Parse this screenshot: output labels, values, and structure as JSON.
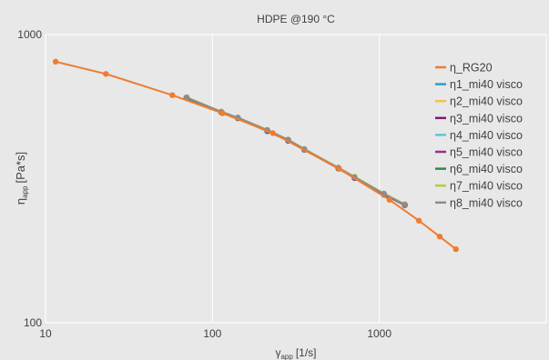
{
  "chart_data": {
    "type": "line",
    "title": "HDPE @190 °C",
    "xlabel": "γ",
    "xlabel_sub": "app",
    "xlabel_unit": "[1/s]",
    "ylabel": "η",
    "ylabel_sub": "app",
    "ylabel_unit": "[Pa*s]",
    "xscale": "log",
    "yscale": "log",
    "xlim": [
      10,
      10000
    ],
    "ylim": [
      100,
      1000
    ],
    "x_ticks": [
      10,
      100,
      1000
    ],
    "x_tick_labels": [
      "10",
      "100",
      "1000"
    ],
    "y_ticks": [
      100,
      1000
    ],
    "y_tick_labels": [
      "100",
      "1000"
    ],
    "grid": "x-major",
    "legend_position": "right",
    "series": [
      {
        "name": "η_RG20",
        "color": "#ed7d31",
        "x": [
          11.5,
          23,
          57.5,
          115,
          230,
          575,
          1150,
          1725,
          2300,
          2875
        ],
        "y": [
          805,
          730,
          616,
          533,
          455,
          342,
          267,
          226,
          199,
          180
        ]
      },
      {
        "name": "η1_mi40 visco",
        "color": "#2e9bd6",
        "x": [
          70,
          113,
          142,
          213,
          284,
          355,
          568,
          710,
          1065,
          1420
        ],
        "y": [
          602,
          537,
          512,
          462,
          428,
          398,
          343,
          318,
          278,
          256
        ]
      },
      {
        "name": "η2_mi40 visco",
        "color": "#f5c342",
        "x": [
          70,
          113,
          142,
          213,
          284,
          355,
          568,
          710,
          1065,
          1420
        ],
        "y": [
          604,
          538,
          513,
          464,
          430,
          399,
          344,
          319,
          279,
          257
        ]
      },
      {
        "name": "η3_mi40 visco",
        "color": "#7b1c6c",
        "x": [
          70,
          113,
          142,
          213,
          284,
          355,
          568,
          710,
          1065,
          1420
        ],
        "y": [
          603,
          537,
          513,
          463,
          429,
          399,
          343,
          318,
          279,
          256
        ]
      },
      {
        "name": "η4_mi40 visco",
        "color": "#5fc3dc",
        "x": [
          70,
          113,
          142,
          213,
          284,
          355,
          568,
          710,
          1065,
          1420
        ],
        "y": [
          605,
          539,
          514,
          465,
          431,
          400,
          344,
          320,
          280,
          257
        ]
      },
      {
        "name": "η5_mi40 visco",
        "color": "#9c2d8d",
        "x": [
          70,
          113,
          142,
          213,
          284,
          355,
          568,
          710,
          1065,
          1420
        ],
        "y": [
          603,
          538,
          513,
          464,
          430,
          399,
          343,
          319,
          279,
          256
        ]
      },
      {
        "name": "η6_mi40 visco",
        "color": "#2e8b3e",
        "x": [
          70,
          113,
          142,
          213,
          284,
          355,
          568,
          710,
          1065,
          1420
        ],
        "y": [
          604,
          538,
          514,
          465,
          431,
          400,
          344,
          320,
          280,
          257
        ]
      },
      {
        "name": "η7_mi40 visco",
        "color": "#b5cc3a",
        "x": [
          70,
          113,
          142,
          213,
          284,
          355,
          568,
          710,
          1065,
          1420
        ],
        "y": [
          606,
          540,
          515,
          467,
          432,
          401,
          345,
          321,
          281,
          258
        ]
      },
      {
        "name": "η8_mi40 visco",
        "color": "#8c8c8c",
        "x": [
          70,
          113,
          142,
          213,
          284,
          355,
          568,
          710,
          1065,
          1420
        ],
        "y": [
          605,
          539,
          515,
          466,
          432,
          400,
          345,
          320,
          280,
          257
        ]
      }
    ]
  }
}
